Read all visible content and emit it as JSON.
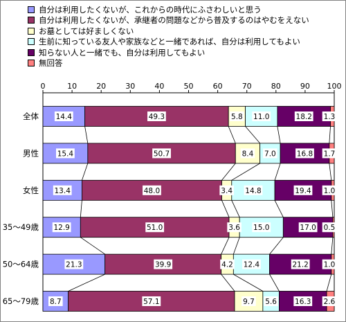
{
  "chart_data": {
    "type": "bar",
    "stacked": true,
    "orientation": "horizontal",
    "xlim": [
      0,
      100
    ],
    "xticks": [
      "0",
      "10",
      "20",
      "30",
      "40",
      "50",
      "60",
      "70",
      "80",
      "90",
      "100"
    ],
    "grid": false,
    "legend_position": "top",
    "categories": [
      "全体",
      "男性",
      "女性",
      "35～49歳",
      "50～64歳",
      "65～79歳"
    ],
    "series": [
      {
        "name": "自分は利用したくないが、これからの時代にふさわしいと思う",
        "color": "#9999ff",
        "values": [
          14.4,
          15.4,
          13.4,
          12.9,
          21.3,
          8.7
        ]
      },
      {
        "name": "自分は利用したくないが、承継者の問題などから普及するのはやむをえない",
        "color": "#993366",
        "values": [
          49.3,
          50.7,
          48.0,
          51.0,
          39.9,
          57.1
        ]
      },
      {
        "name": "お墓としては好ましくない",
        "color": "#ffffcc",
        "values": [
          5.8,
          8.4,
          3.4,
          3.6,
          4.2,
          9.7
        ]
      },
      {
        "name": "生前に知っている友人や家族などと一緒であれば、自分は利用してもよい",
        "color": "#ccffff",
        "values": [
          11.0,
          7.0,
          14.8,
          15.0,
          12.4,
          5.6
        ]
      },
      {
        "name": "知らない人と一緒でも、自分は利用してもよい",
        "color": "#660066",
        "values": [
          18.2,
          16.8,
          19.4,
          17.0,
          21.2,
          16.3
        ]
      },
      {
        "name": "無回答",
        "color": "#ff8080",
        "values": [
          1.3,
          1.7,
          1.0,
          0.5,
          1.0,
          2.6
        ]
      }
    ],
    "data_labels": [
      [
        "14.4",
        "49.3",
        "5.8",
        "11.0",
        "18.2",
        "1.3"
      ],
      [
        "15.4",
        "50.7",
        "8.4",
        "7.0",
        "16.8",
        "1.7"
      ],
      [
        "13.4",
        "48.0",
        "3.4",
        "14.8",
        "19.4",
        "1.0"
      ],
      [
        "12.9",
        "51.0",
        "3.6",
        "15.0",
        "17.0",
        "0.5"
      ],
      [
        "21.3",
        "39.9",
        "4.2",
        "12.4",
        "21.2",
        "1.0"
      ],
      [
        "8.7",
        "57.1",
        "9.7",
        "5.6",
        "16.3",
        "2.6"
      ]
    ]
  }
}
